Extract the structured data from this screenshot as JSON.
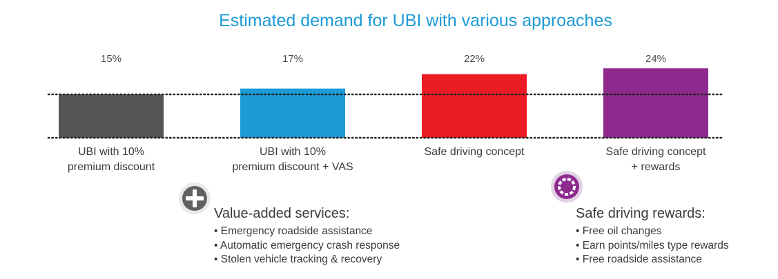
{
  "chart_data": {
    "type": "bar",
    "title": "Estimated demand for UBI with various approaches",
    "categories": [
      [
        "UBI with 10%",
        "premium discount"
      ],
      [
        "UBI with 10%",
        "premium discount + VAS"
      ],
      [
        "Safe driving concept"
      ],
      [
        "Safe driving concept",
        "+ rewards"
      ]
    ],
    "values": [
      15,
      17,
      22,
      24
    ],
    "value_labels": [
      "15%",
      "17%",
      "22%",
      "24%"
    ],
    "colors": [
      "#555555",
      "#1d9bd7",
      "#ec1c24",
      "#8e2a8e"
    ],
    "unit": "%",
    "grid": false,
    "legend": "none"
  },
  "panels": {
    "vas": {
      "title": "Value-added services:",
      "items": [
        "Emergency roadside assistance",
        "Automatic emergency crash response",
        "Stolen vehicle tracking & recovery"
      ],
      "icon": "plus-circle-icon"
    },
    "rewards": {
      "title": "Safe driving rewards:",
      "items": [
        "Free oil changes",
        "Earn points/miles type rewards",
        "Free roadside assistance"
      ],
      "icon": "gear-icon"
    }
  }
}
